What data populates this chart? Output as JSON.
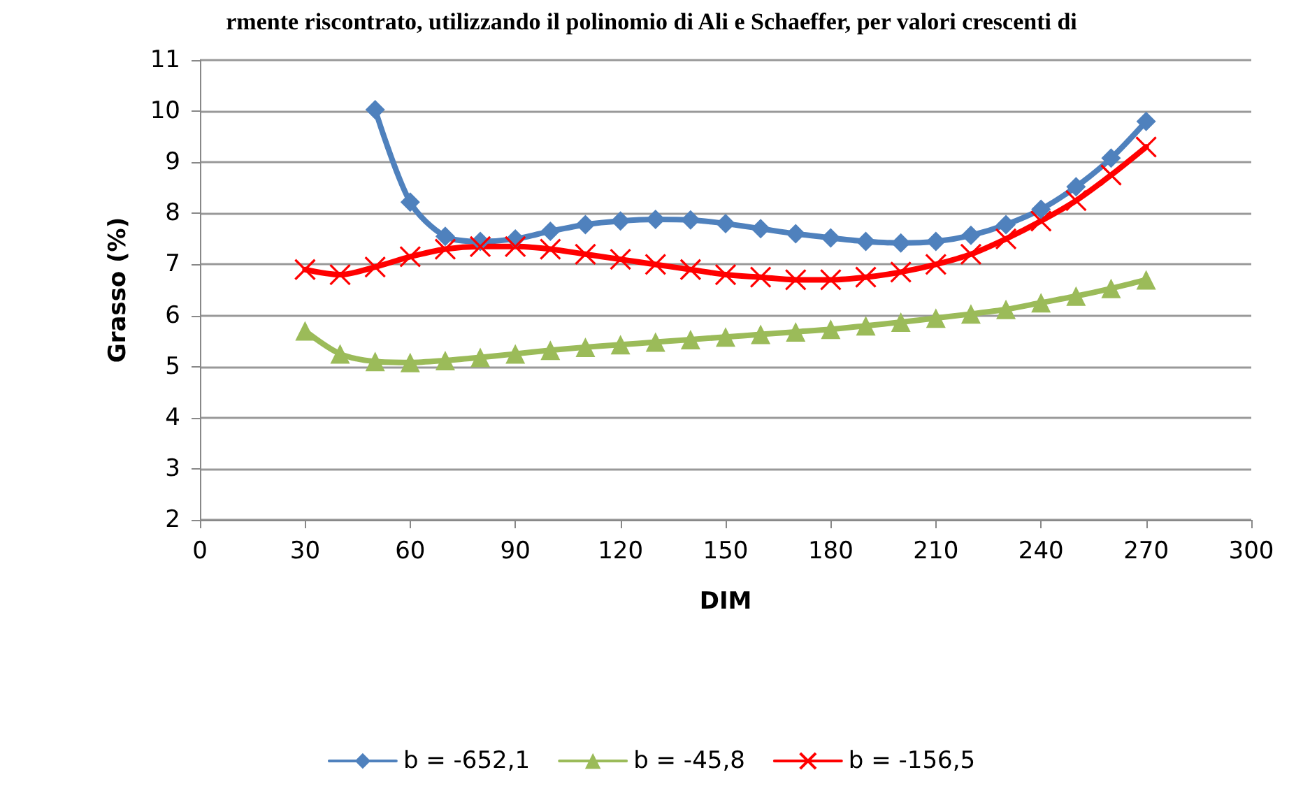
{
  "chart_data": {
    "type": "line",
    "title": "rmente riscontrato, utilizzando il polinomio di Ali e Schaeffer, per valori crescenti di",
    "xlabel": "DIM",
    "ylabel": "Grasso (%)",
    "xlim": [
      0,
      300
    ],
    "xticks": [
      0,
      30,
      60,
      90,
      120,
      150,
      180,
      210,
      240,
      270,
      300
    ],
    "ylim": [
      2,
      11
    ],
    "yticks": [
      2,
      3,
      4,
      5,
      6,
      7,
      8,
      9,
      10,
      11
    ],
    "grid": "y",
    "legend": "bottom",
    "series": [
      {
        "name": "b = -652,1",
        "color": "#4f81bd",
        "marker": "diamond",
        "x": [
          50,
          60,
          70,
          80,
          90,
          100,
          110,
          120,
          130,
          140,
          150,
          160,
          170,
          180,
          190,
          200,
          210,
          220,
          230,
          240,
          250,
          260,
          270
        ],
        "values": [
          10.03,
          8.22,
          7.55,
          7.45,
          7.5,
          7.65,
          7.78,
          7.85,
          7.88,
          7.87,
          7.8,
          7.7,
          7.6,
          7.52,
          7.45,
          7.42,
          7.45,
          7.57,
          7.78,
          8.08,
          8.52,
          9.08,
          9.8
        ]
      },
      {
        "name": "b = -45,8",
        "color": "#9bbb59",
        "marker": "triangle",
        "x": [
          30,
          40,
          50,
          60,
          70,
          80,
          90,
          100,
          110,
          120,
          130,
          140,
          150,
          160,
          170,
          180,
          190,
          200,
          210,
          220,
          230,
          240,
          250,
          260,
          270
        ],
        "values": [
          5.7,
          5.25,
          5.1,
          5.08,
          5.12,
          5.18,
          5.25,
          5.32,
          5.38,
          5.43,
          5.48,
          5.53,
          5.58,
          5.63,
          5.68,
          5.73,
          5.8,
          5.87,
          5.95,
          6.03,
          6.12,
          6.25,
          6.38,
          6.53,
          6.7
        ]
      },
      {
        "name": "b = -156,5",
        "color": "#ff0000",
        "marker": "cross",
        "x": [
          30,
          40,
          50,
          60,
          70,
          80,
          90,
          100,
          110,
          120,
          130,
          140,
          150,
          160,
          170,
          180,
          190,
          200,
          210,
          220,
          230,
          240,
          250,
          260,
          270
        ],
        "values": [
          6.9,
          6.8,
          6.95,
          7.15,
          7.3,
          7.35,
          7.35,
          7.3,
          7.2,
          7.1,
          7.0,
          6.9,
          6.8,
          6.75,
          6.7,
          6.7,
          6.75,
          6.85,
          7.0,
          7.2,
          7.5,
          7.85,
          8.25,
          8.75,
          9.3
        ]
      }
    ]
  }
}
